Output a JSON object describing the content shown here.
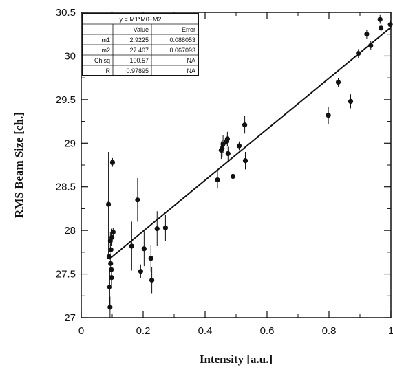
{
  "chart_data": {
    "type": "scatter",
    "title": "",
    "xlabel": "Intensity [a.u.]",
    "ylabel": "RMS Beam Size [ch.]",
    "xlim": [
      0,
      1
    ],
    "ylim": [
      27,
      30.5
    ],
    "grid": false,
    "x_ticks": [
      "0",
      "0.2",
      "0.4",
      "0.6",
      "0.8",
      "1"
    ],
    "y_ticks": [
      "27",
      "27.5",
      "28",
      "28.5",
      "29",
      "29.5",
      "30",
      "30.5"
    ],
    "fit": {
      "equation": "y = M1*M0+M2",
      "m1": 2.9225,
      "m2": 27.407
    },
    "fit_table": {
      "header": "y = M1*M0+M2",
      "columns": [
        "",
        "Value",
        "Error"
      ],
      "rows": [
        [
          "m1",
          "2.9225",
          "0.088053"
        ],
        [
          "m2",
          "27.407",
          "0.067093"
        ],
        [
          "Chisq",
          "100.57",
          "NA"
        ],
        [
          "R",
          "0.97895",
          "NA"
        ]
      ]
    },
    "points": [
      {
        "x": 0.088,
        "y": 28.3,
        "err": 0.6
      },
      {
        "x": 0.09,
        "y": 27.7,
        "err": 0.6
      },
      {
        "x": 0.092,
        "y": 27.35,
        "err": 0.2
      },
      {
        "x": 0.093,
        "y": 27.12,
        "err": 0.12
      },
      {
        "x": 0.094,
        "y": 27.88,
        "err": 0.1
      },
      {
        "x": 0.095,
        "y": 27.62,
        "err": 0.1
      },
      {
        "x": 0.096,
        "y": 27.78,
        "err": 0.1
      },
      {
        "x": 0.097,
        "y": 27.55,
        "err": 0.1
      },
      {
        "x": 0.098,
        "y": 27.46,
        "err": 0.1
      },
      {
        "x": 0.099,
        "y": 27.92,
        "err": 0.1
      },
      {
        "x": 0.101,
        "y": 28.78,
        "err": 0.05
      },
      {
        "x": 0.103,
        "y": 27.98,
        "err": 0.05
      },
      {
        "x": 0.163,
        "y": 27.82,
        "err": 0.28
      },
      {
        "x": 0.182,
        "y": 28.35,
        "err": 0.25
      },
      {
        "x": 0.192,
        "y": 27.53,
        "err": 0.08
      },
      {
        "x": 0.203,
        "y": 27.79,
        "err": 0.2
      },
      {
        "x": 0.225,
        "y": 27.68,
        "err": 0.15
      },
      {
        "x": 0.228,
        "y": 27.43,
        "err": 0.15
      },
      {
        "x": 0.245,
        "y": 28.02,
        "err": 0.2
      },
      {
        "x": 0.272,
        "y": 28.03,
        "err": 0.15
      },
      {
        "x": 0.44,
        "y": 28.58,
        "err": 0.1
      },
      {
        "x": 0.452,
        "y": 28.92,
        "err": 0.1
      },
      {
        "x": 0.455,
        "y": 28.94,
        "err": 0.1
      },
      {
        "x": 0.458,
        "y": 28.99,
        "err": 0.1
      },
      {
        "x": 0.468,
        "y": 29.02,
        "err": 0.08
      },
      {
        "x": 0.472,
        "y": 29.05,
        "err": 0.08
      },
      {
        "x": 0.474,
        "y": 28.88,
        "err": 0.08
      },
      {
        "x": 0.49,
        "y": 28.62,
        "err": 0.08
      },
      {
        "x": 0.51,
        "y": 28.97,
        "err": 0.05
      },
      {
        "x": 0.528,
        "y": 29.21,
        "err": 0.1
      },
      {
        "x": 0.53,
        "y": 28.8,
        "err": 0.1
      },
      {
        "x": 0.798,
        "y": 29.32,
        "err": 0.1
      },
      {
        "x": 0.83,
        "y": 29.7,
        "err": 0.05
      },
      {
        "x": 0.87,
        "y": 29.48,
        "err": 0.08
      },
      {
        "x": 0.895,
        "y": 30.03,
        "err": 0.05
      },
      {
        "x": 0.922,
        "y": 30.25,
        "err": 0.05
      },
      {
        "x": 0.935,
        "y": 30.12,
        "err": 0.05
      },
      {
        "x": 0.965,
        "y": 30.42,
        "err": 0.05
      },
      {
        "x": 0.968,
        "y": 30.32,
        "err": 0.05
      },
      {
        "x": 0.998,
        "y": 30.36,
        "err": 0.05
      }
    ]
  }
}
